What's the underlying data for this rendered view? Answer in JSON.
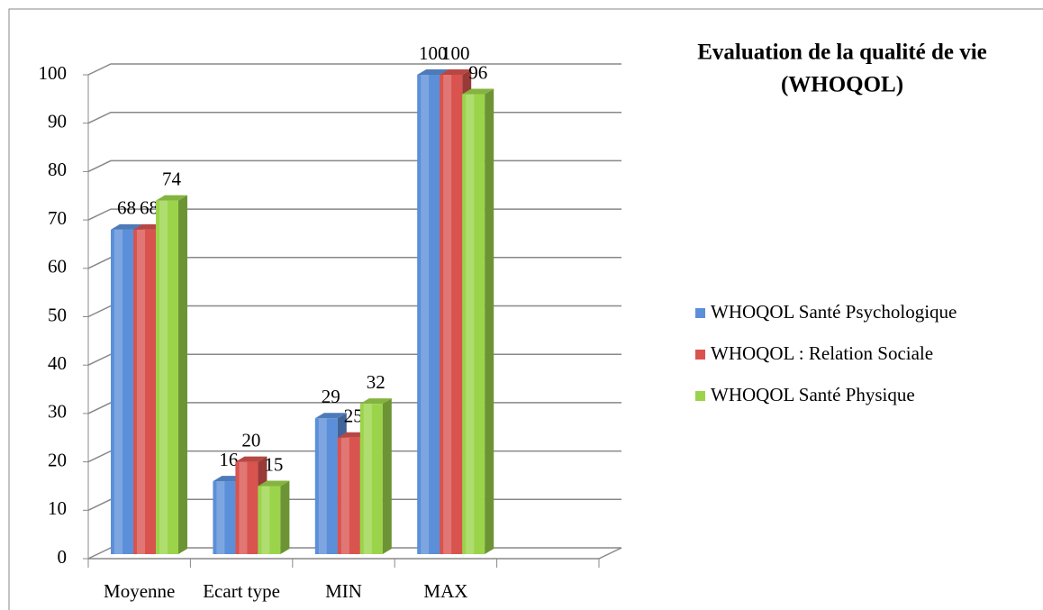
{
  "chart_data": {
    "type": "bar",
    "title_lines": [
      "Evaluation de la qualité de vie",
      "(WHOQOL)"
    ],
    "categories": [
      "Moyenne",
      "Ecart type",
      "MIN",
      "MAX",
      null
    ],
    "series": [
      {
        "name": "WHOQOL Santé Psychologique",
        "color": "#5b8fd9",
        "values": [
          68,
          16,
          29,
          100,
          null
        ]
      },
      {
        "name": "WHOQOL : Relation Sociale",
        "color": "#d9534f",
        "values": [
          68,
          20,
          25,
          100,
          null
        ]
      },
      {
        "name": "WHOQOL Santé Physique",
        "color": "#9bd44a",
        "values": [
          74,
          15,
          32,
          96,
          null
        ]
      }
    ],
    "ylim": [
      0,
      100
    ],
    "yticks": [
      0,
      10,
      20,
      30,
      40,
      50,
      60,
      70,
      80,
      90,
      100
    ],
    "grid": true,
    "legend": "right"
  }
}
